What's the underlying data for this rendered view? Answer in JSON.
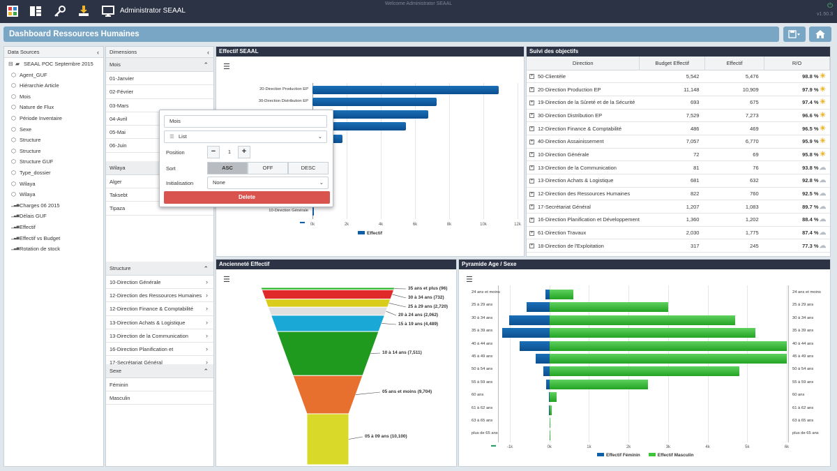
{
  "topbar": {
    "user_label": "Administrator SEAAL",
    "welcome": "Welcome Administrator SEAAL",
    "version": "v1.50.3",
    "icons": [
      "dashboard-grid-icon",
      "layout-icon",
      "key-icon",
      "download-icon",
      "monitor-icon",
      "power-icon"
    ]
  },
  "titlebar": {
    "title": "Dashboard Ressources Humaines"
  },
  "datasources": {
    "header": "Data Sources",
    "root": "SEAAL POC Septembre 2015",
    "items": [
      {
        "label": "Agent_GUF",
        "icon": "cube-icon"
      },
      {
        "label": "Hiérarchie Article",
        "icon": "cube-icon"
      },
      {
        "label": "Mois",
        "icon": "cube-icon"
      },
      {
        "label": "Nature de Flux",
        "icon": "cube-icon"
      },
      {
        "label": "Période Inventaire",
        "icon": "cube-icon"
      },
      {
        "label": "Sexe",
        "icon": "cube-icon"
      },
      {
        "label": "Structure",
        "icon": "cube-icon"
      },
      {
        "label": "Structure",
        "icon": "cube-icon"
      },
      {
        "label": "Structure GUF",
        "icon": "cube-icon"
      },
      {
        "label": "Type_dossier",
        "icon": "cube-icon"
      },
      {
        "label": "Wilaya",
        "icon": "cube-icon"
      },
      {
        "label": "Wilaya",
        "icon": "cube-icon"
      },
      {
        "label": "Charges 06 2015",
        "icon": "measure-icon"
      },
      {
        "label": "Délais GUF",
        "icon": "measure-icon"
      },
      {
        "label": "Effectif",
        "icon": "measure-icon"
      },
      {
        "label": "Effectif vs Budget",
        "icon": "measure-icon"
      },
      {
        "label": "Rotation de stock",
        "icon": "measure-icon"
      }
    ]
  },
  "dimensions": {
    "header": "Dimensions",
    "mois": {
      "title": "Mois",
      "items": [
        "01-Janvier",
        "02-Février",
        "03-Mars",
        "04-Avril",
        "05-Mai",
        "06-Juin"
      ]
    },
    "wilaya": {
      "title": "Wilaya",
      "items": [
        "Alger",
        "Taksebt",
        "Tipaza"
      ]
    },
    "structure": {
      "title": "Structure",
      "items": [
        "10-Direction Générale",
        "12-Direction des Ressources Humaines",
        "12-Direction Finance & Comptabilité",
        "13-Direction Achats & Logistique",
        "13-Direction de la Communication",
        "16-Direction Planification et",
        "17-Secrétariat Général"
      ]
    },
    "sexe": {
      "title": "Sexe",
      "items": [
        "Féminin",
        "Masculin"
      ]
    }
  },
  "popup": {
    "name_value": "Mois",
    "type_value": "List",
    "position_label": "Position",
    "position_value": "1",
    "sort_label": "Sort",
    "sort_options": [
      "ASC",
      "OFF",
      "DESC"
    ],
    "sort_selected": "ASC",
    "init_label": "Initialisation",
    "init_value": "None",
    "delete_label": "Delete"
  },
  "effectif_chart": {
    "panel_title": "Effectif SEAAL",
    "chart_data": {
      "type": "bar",
      "orientation": "horizontal",
      "categories": [
        "20-Direction Production EP",
        "30-Direction Distribution EP",
        "40-Direction Assainissement",
        "",
        "",
        "",
        "",
        "",
        "",
        "13-Direction de la Communication",
        "10-Direction Générale"
      ],
      "visible_values": [
        10909,
        7273,
        6770,
        5476,
        1775,
        null,
        null,
        null,
        null,
        76,
        69
      ],
      "series": [
        {
          "name": "Effectif"
        }
      ],
      "x_ticks": [
        "0k",
        "2k",
        "4k",
        "6k",
        "8k",
        "10k",
        "12k"
      ],
      "xlim": [
        0,
        12000
      ],
      "legend": "bottom",
      "color": "#0f5ea8"
    }
  },
  "objectifs": {
    "panel_title": "Suivi des objectifs",
    "columns": [
      "Direction",
      "Budget Effectif",
      "Effectif",
      "R/O"
    ],
    "rows": [
      {
        "dir": "50-Clientèle",
        "budget": "5,542",
        "eff": "5,476",
        "ro": "98.8 %",
        "wx": "sun"
      },
      {
        "dir": "20-Direction Production EP",
        "budget": "11,148",
        "eff": "10,909",
        "ro": "97.9 %",
        "wx": "sun"
      },
      {
        "dir": "19-Direction de la Sûreté et de la Sécurité",
        "budget": "693",
        "eff": "675",
        "ro": "97.4 %",
        "wx": "sun"
      },
      {
        "dir": "30-Direction Distribution EP",
        "budget": "7,529",
        "eff": "7,273",
        "ro": "96.6 %",
        "wx": "sun"
      },
      {
        "dir": "12-Direction Finance & Comptabilité",
        "budget": "486",
        "eff": "469",
        "ro": "96.5 %",
        "wx": "sun"
      },
      {
        "dir": "40-Direction Assainissement",
        "budget": "7,057",
        "eff": "6,770",
        "ro": "95.9 %",
        "wx": "sun"
      },
      {
        "dir": "10-Direction Générale",
        "budget": "72",
        "eff": "69",
        "ro": "95.8 %",
        "wx": "sun"
      },
      {
        "dir": "13-Direction de la Communication",
        "budget": "81",
        "eff": "76",
        "ro": "93.8 %",
        "wx": "cloud"
      },
      {
        "dir": "13-Direction Achats & Logistique",
        "budget": "681",
        "eff": "632",
        "ro": "92.8 %",
        "wx": "cloud"
      },
      {
        "dir": "12-Direction des Ressources Humaines",
        "budget": "822",
        "eff": "760",
        "ro": "92.5 %",
        "wx": "cloud"
      },
      {
        "dir": "17-Secrétariat Général",
        "budget": "1,207",
        "eff": "1,083",
        "ro": "89.7 %",
        "wx": "cloud"
      },
      {
        "dir": "16-Direction Planification et Développement",
        "budget": "1,360",
        "eff": "1,202",
        "ro": "88.4 %",
        "wx": "cloud"
      },
      {
        "dir": "61-Direction Travaux",
        "budget": "2,030",
        "eff": "1,775",
        "ro": "87.4 %",
        "wx": "cloud"
      },
      {
        "dir": "18-Direction de l'Exploitation",
        "budget": "317",
        "eff": "245",
        "ro": "77.3 %",
        "wx": "cloud"
      }
    ]
  },
  "anciennete": {
    "panel_title": "Ancienneté Effectif",
    "chart_data": {
      "type": "funnel",
      "segments": [
        {
          "label": "35 ans et plus (96)",
          "value": 96,
          "color": "#2eb82e"
        },
        {
          "label": "30 à 34 ans (732)",
          "value": 732,
          "color": "#e02a2a"
        },
        {
          "label": "25 à 29 ans (2,720)",
          "value": 2720,
          "color": "#d9cc1a"
        },
        {
          "label": "20 à 24 ans (2,062)",
          "value": 2062,
          "color": "#e0e0e0"
        },
        {
          "label": "15 à 19 ans (4,489)",
          "value": 4489,
          "color": "#1aa9d6"
        },
        {
          "label": "10 à 14 ans (7,511)",
          "value": 7511,
          "color": "#1f9a1f"
        },
        {
          "label": "05 ans et moins (9,704)",
          "value": 9704,
          "color": "#e8702e"
        },
        {
          "label": "05 à 09 ans (10,100)",
          "value": 10100,
          "color": "#d9d92a"
        }
      ]
    }
  },
  "pyramide": {
    "panel_title": "Pyramide Age / Sexe",
    "chart_data": {
      "type": "bar",
      "orientation": "horizontal-diverging",
      "categories": [
        "24 ans et moins",
        "25 à 29 ans",
        "30 à 34 ans",
        "35 à 39 ans",
        "40 à 44 ans",
        "45 à 49 ans",
        "50 à 54 ans",
        "55 à 59 ans",
        "60 ans",
        "61 à 62 ans",
        "63 à 65 ans",
        "plus de 65 ans"
      ],
      "series": [
        {
          "name": "Effectif Féminin",
          "values": [
            -100,
            -580,
            -1020,
            -1200,
            -750,
            -350,
            -150,
            -80,
            -10,
            -5,
            -3,
            -2
          ],
          "color": "#0f5ea8"
        },
        {
          "name": "Effectif Masculin",
          "values": [
            600,
            3000,
            4700,
            5200,
            6000,
            6000,
            4800,
            2500,
            180,
            60,
            30,
            10
          ],
          "color": "#3cc43c"
        }
      ],
      "x_ticks": [
        "-1k",
        "0k",
        "1k",
        "2k",
        "3k",
        "4k",
        "5k",
        "6k"
      ],
      "xlim": [
        -1300,
        6000
      ],
      "legend": "bottom"
    }
  }
}
